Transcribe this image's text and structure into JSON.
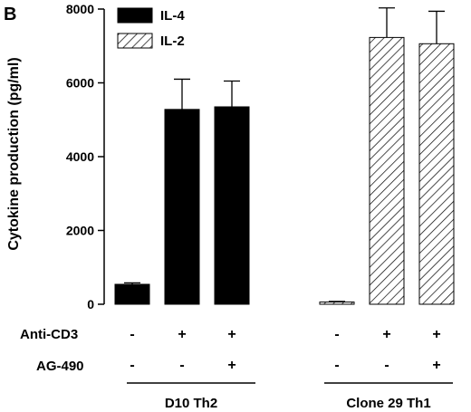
{
  "chart_data": {
    "type": "bar",
    "panel_label": "B",
    "ylabel": "Cytokine production (pg/ml)",
    "ylim": [
      0,
      8000
    ],
    "yticks": [
      "0",
      "2000",
      "4000",
      "6000",
      "8000"
    ],
    "ytick_values": [
      0,
      2000,
      4000,
      6000,
      8000
    ],
    "legend": {
      "placement": "top-left",
      "items": [
        "IL-4",
        "IL-2"
      ]
    },
    "series": [
      {
        "name": "IL-4",
        "pattern": "solid-black",
        "values": [
          540,
          5280,
          5350
        ],
        "errors": [
          40,
          820,
          700
        ]
      },
      {
        "name": "IL-2",
        "pattern": "hatched",
        "values": [
          60,
          7230,
          7060
        ],
        "errors": [
          15,
          800,
          880
        ]
      }
    ],
    "rows": [
      {
        "label": "Anti-CD3",
        "values": [
          "-",
          "+",
          "+",
          "-",
          "+",
          "+"
        ]
      },
      {
        "label": "AG-490",
        "values": [
          "-",
          "-",
          "+",
          "-",
          "-",
          "+"
        ]
      }
    ],
    "groups": [
      "D10 Th2",
      "Clone 29 Th1"
    ]
  }
}
